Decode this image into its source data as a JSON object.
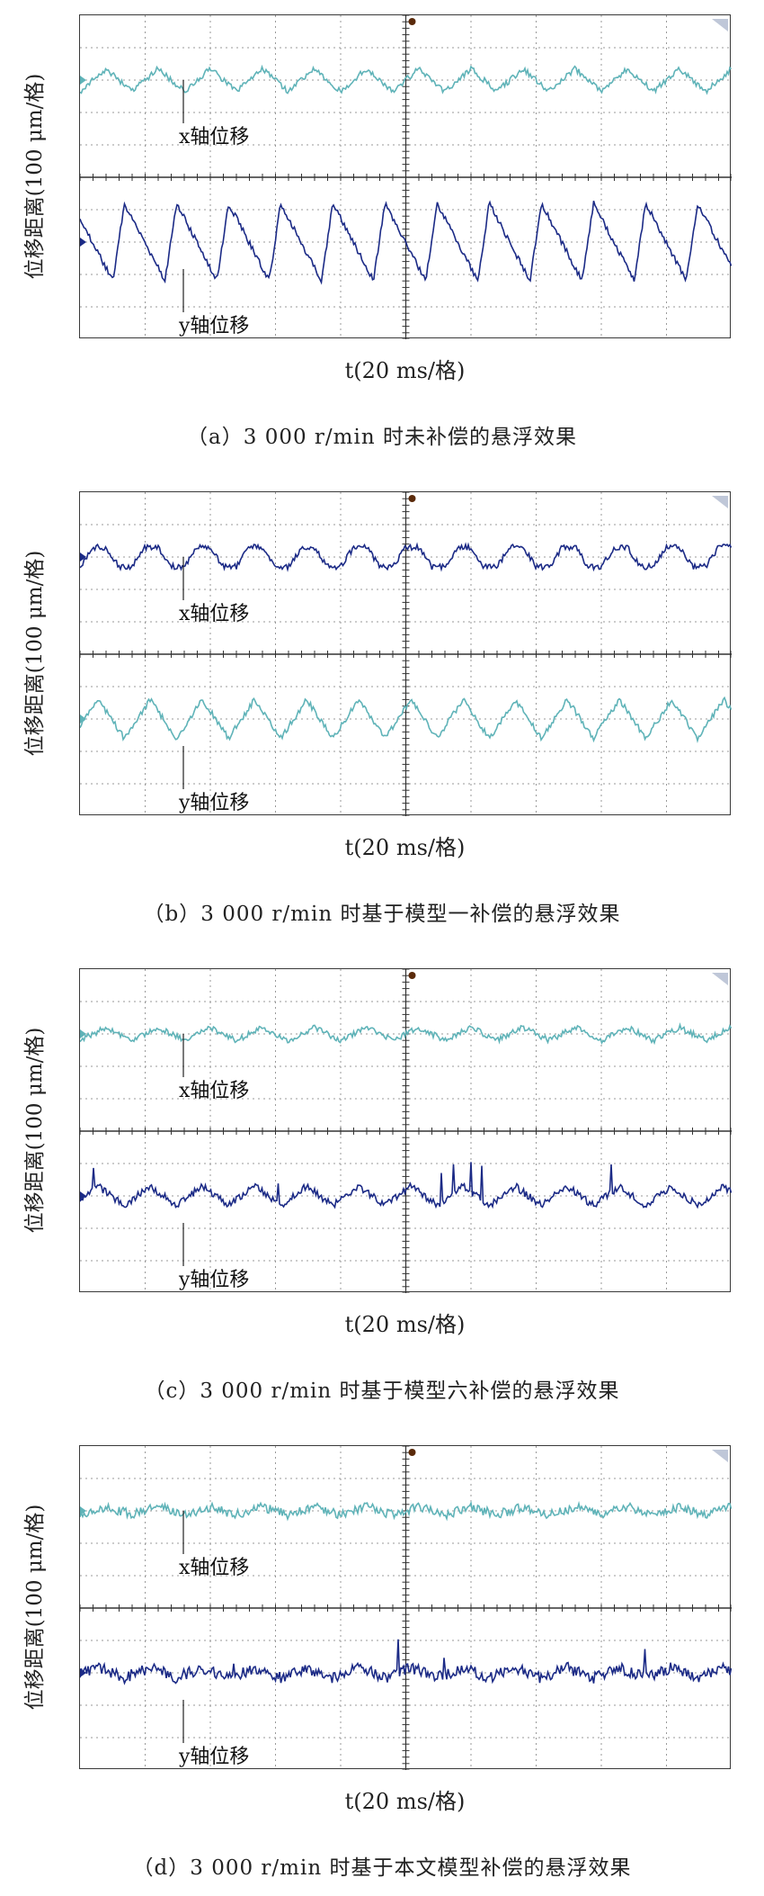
{
  "chart_data": [
    {
      "type": "line",
      "panel": "a",
      "caption": "（a）3 000 r/min 时未补偿的悬浮效果",
      "ylabel": "位移距离(100 μm/格)",
      "xlabel": "t(20 ms/格)",
      "series": [
        {
          "name": "x轴位移",
          "color": "#5fb3b8",
          "amplitude_div": 0.35,
          "period_div": 0.8,
          "waveform": "triangle",
          "spikes": false
        },
        {
          "name": "y轴位移",
          "color": "#1b2a86",
          "amplitude_div": 1.2,
          "period_div": 0.8,
          "waveform": "sawtooth",
          "spikes": false
        }
      ],
      "grid": true,
      "x_divisions": 10,
      "y_divisions": 10
    },
    {
      "type": "line",
      "panel": "b",
      "caption": "（b）3 000 r/min 时基于模型一补偿的悬浮效果",
      "ylabel": "位移距离(100 μm/格)",
      "xlabel": "t(20 ms/格)",
      "series": [
        {
          "name": "x轴位移",
          "color": "#1b2a86",
          "amplitude_div": 0.3,
          "period_div": 0.8,
          "waveform": "trapezoid",
          "spikes": false
        },
        {
          "name": "y轴位移",
          "color": "#5fb3b8",
          "amplitude_div": 0.6,
          "period_div": 0.8,
          "waveform": "triangle",
          "spikes": false
        }
      ],
      "grid": true,
      "x_divisions": 10,
      "y_divisions": 10
    },
    {
      "type": "line",
      "panel": "c",
      "caption": "（c）3 000 r/min 时基于模型六补偿的悬浮效果",
      "ylabel": "位移距离(100 μm/格)",
      "xlabel": "t(20 ms/格)",
      "series": [
        {
          "name": "x轴位移",
          "color": "#5fb3b8",
          "amplitude_div": 0.2,
          "period_div": 0.8,
          "waveform": "triangle",
          "spikes": false
        },
        {
          "name": "y轴位移",
          "color": "#1b2a86",
          "amplitude_div": 0.3,
          "period_div": 0.8,
          "waveform": "triangle",
          "spikes": true
        }
      ],
      "grid": true,
      "x_divisions": 10,
      "y_divisions": 10
    },
    {
      "type": "line",
      "panel": "d",
      "caption": "（d）3 000 r/min 时基于本文模型补偿的悬浮效果",
      "ylabel": "位移距离(100 μm/格)",
      "xlabel": "t(20 ms/格)",
      "series": [
        {
          "name": "x轴位移",
          "color": "#5fb3b8",
          "amplitude_div": 0.12,
          "period_div": 0.8,
          "waveform": "triangle",
          "spikes": false
        },
        {
          "name": "y轴位移",
          "color": "#1b2a86",
          "amplitude_div": 0.15,
          "period_div": 0.8,
          "waveform": "triangle",
          "spikes": true
        }
      ],
      "grid": true,
      "x_divisions": 10,
      "y_divisions": 10
    }
  ]
}
